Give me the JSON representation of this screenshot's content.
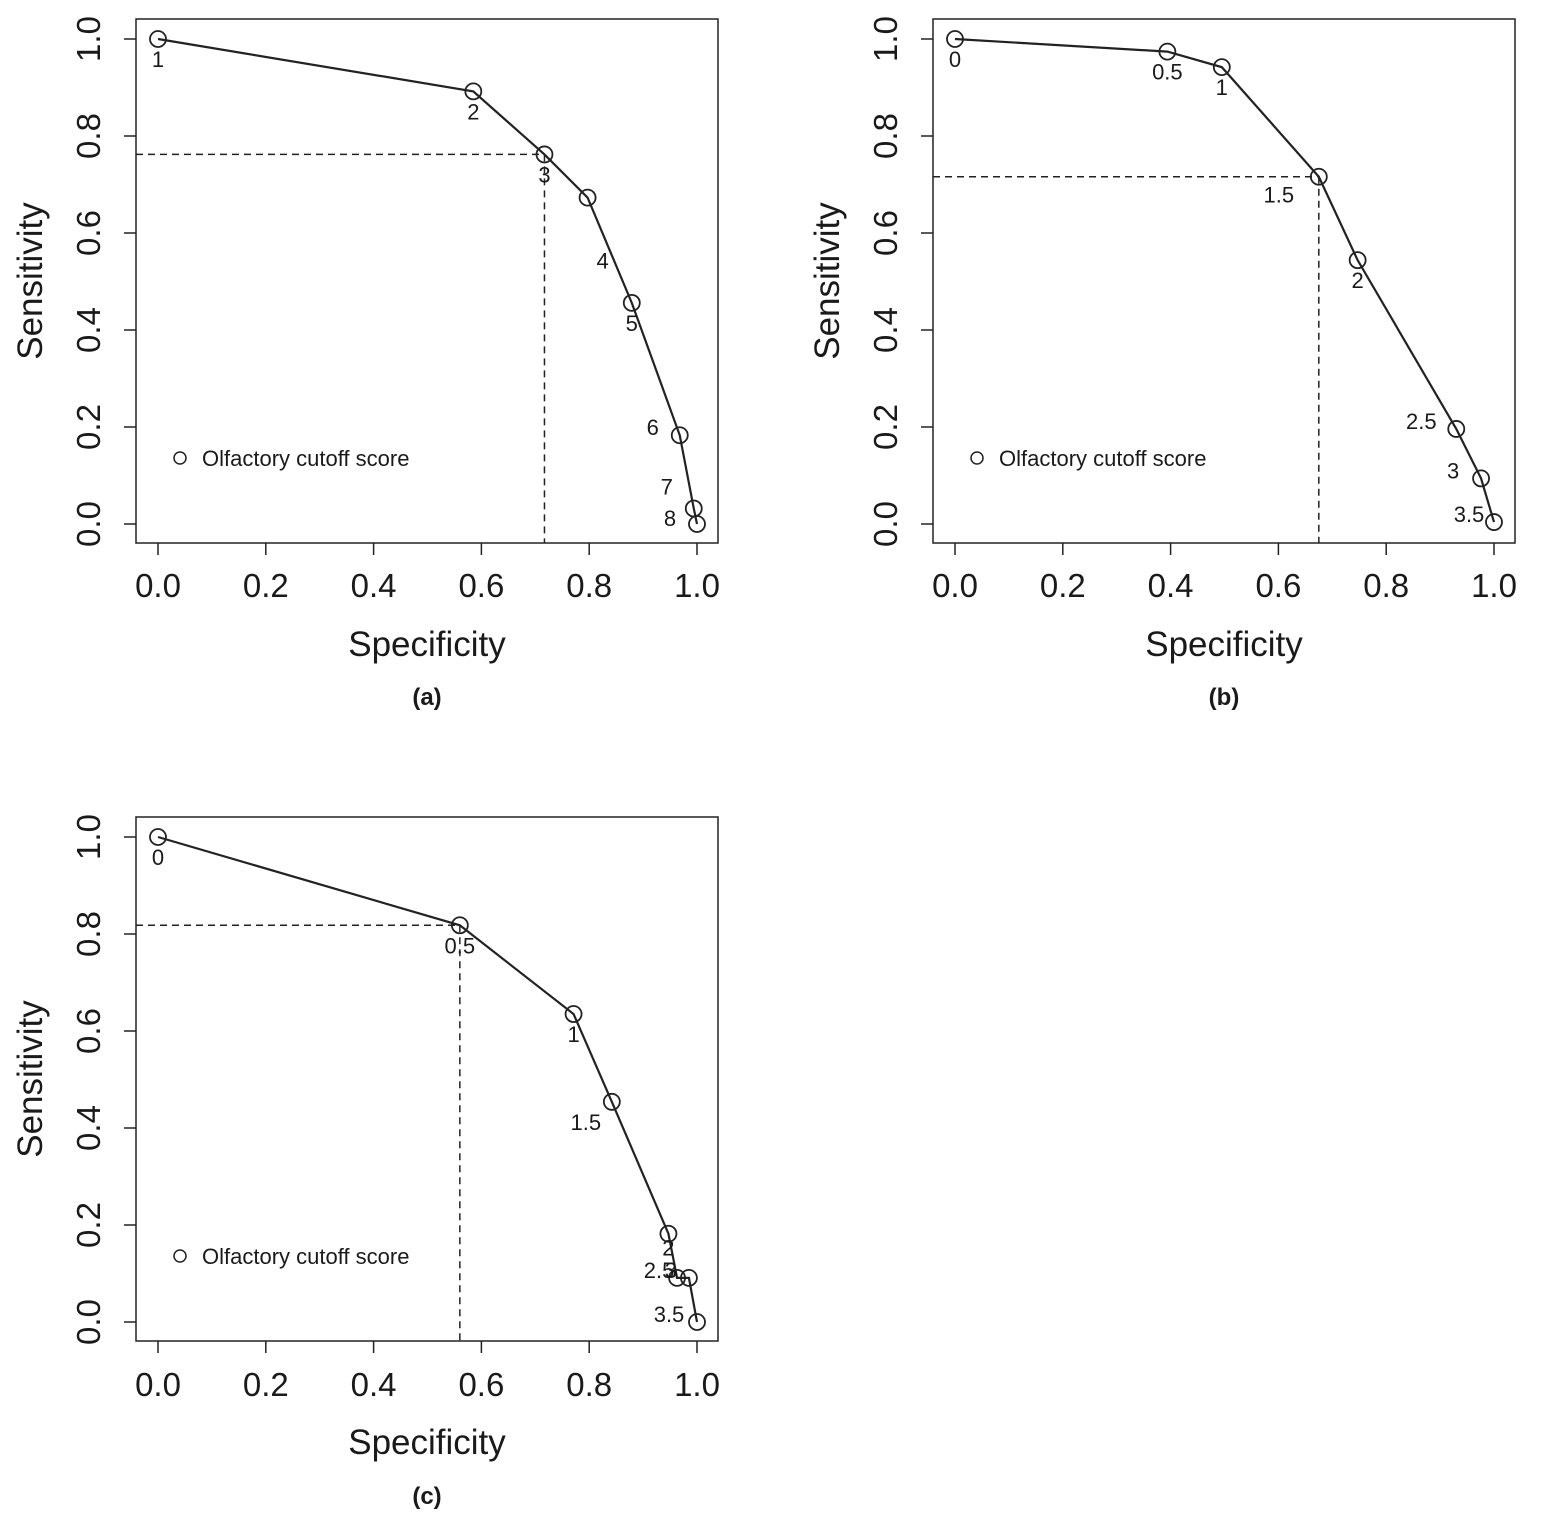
{
  "chart_data": [
    {
      "type": "line",
      "panel_label": "(a)",
      "xlabel": "Specificity",
      "ylabel": "Sensitivity",
      "xlim": [
        0,
        1
      ],
      "ylim": [
        0,
        1
      ],
      "x_ticks": [
        "0.0",
        "0.2",
        "0.4",
        "0.6",
        "0.8",
        "1.0"
      ],
      "y_ticks": [
        "0.0",
        "0.2",
        "0.4",
        "0.6",
        "0.8",
        "1.0"
      ],
      "legend": {
        "label": "Olfactory cutoff score",
        "position": "bottom-left"
      },
      "points": [
        {
          "label": "1",
          "x": 0.0,
          "y": 1.0
        },
        {
          "label": "2",
          "x": 0.585,
          "y": 0.892
        },
        {
          "label": "3",
          "x": 0.717,
          "y": 0.762
        },
        {
          "label": "4",
          "x": 0.797,
          "y": 0.673
        },
        {
          "label": "5",
          "x": 0.879,
          "y": 0.456
        },
        {
          "label": "6",
          "x": 0.968,
          "y": 0.183
        },
        {
          "label": "7",
          "x": 0.994,
          "y": 0.032
        },
        {
          "label": "8",
          "x": 1.0,
          "y": 0.0
        }
      ],
      "cutoff": {
        "x": 0.717,
        "y": 0.762
      }
    },
    {
      "type": "line",
      "panel_label": "(b)",
      "xlabel": "Specificity",
      "ylabel": "Sensitivity",
      "xlim": [
        0,
        1
      ],
      "ylim": [
        0,
        1
      ],
      "x_ticks": [
        "0.0",
        "0.2",
        "0.4",
        "0.6",
        "0.8",
        "1.0"
      ],
      "y_ticks": [
        "0.0",
        "0.2",
        "0.4",
        "0.6",
        "0.8",
        "1.0"
      ],
      "legend": {
        "label": "Olfactory cutoff score",
        "position": "bottom-left"
      },
      "points": [
        {
          "label": "0",
          "x": 0.0,
          "y": 1.0
        },
        {
          "label": "0.5",
          "x": 0.394,
          "y": 0.974
        },
        {
          "label": "1",
          "x": 0.495,
          "y": 0.942
        },
        {
          "label": "1.5",
          "x": 0.675,
          "y": 0.716
        },
        {
          "label": "2",
          "x": 0.747,
          "y": 0.544
        },
        {
          "label": "2.5",
          "x": 0.93,
          "y": 0.196
        },
        {
          "label": "3",
          "x": 0.976,
          "y": 0.094
        },
        {
          "label": "3.5",
          "x": 1.0,
          "y": 0.004
        }
      ],
      "cutoff": {
        "x": 0.675,
        "y": 0.716
      }
    },
    {
      "type": "line",
      "panel_label": "(c)",
      "xlabel": "Specificity",
      "ylabel": "Sensitivity",
      "xlim": [
        0,
        1
      ],
      "ylim": [
        0,
        1
      ],
      "x_ticks": [
        "0.0",
        "0.2",
        "0.4",
        "0.6",
        "0.8",
        "1.0"
      ],
      "y_ticks": [
        "0.0",
        "0.2",
        "0.4",
        "0.6",
        "0.8",
        "1.0"
      ],
      "legend": {
        "label": "Olfactory cutoff score",
        "position": "bottom-left"
      },
      "points": [
        {
          "label": "0",
          "x": 0.0,
          "y": 1.0
        },
        {
          "label": "0.5",
          "x": 0.56,
          "y": 0.818
        },
        {
          "label": "1",
          "x": 0.771,
          "y": 0.635
        },
        {
          "label": "1.5",
          "x": 0.842,
          "y": 0.454
        },
        {
          "label": "2",
          "x": 0.947,
          "y": 0.182
        },
        {
          "label": "2.5",
          "x": 0.963,
          "y": 0.091
        },
        {
          "label": "3",
          "x": 0.985,
          "y": 0.091
        },
        {
          "label": "3.5",
          "x": 1.0,
          "y": 0.0
        }
      ],
      "cutoff": {
        "x": 0.56,
        "y": 0.818
      }
    }
  ]
}
